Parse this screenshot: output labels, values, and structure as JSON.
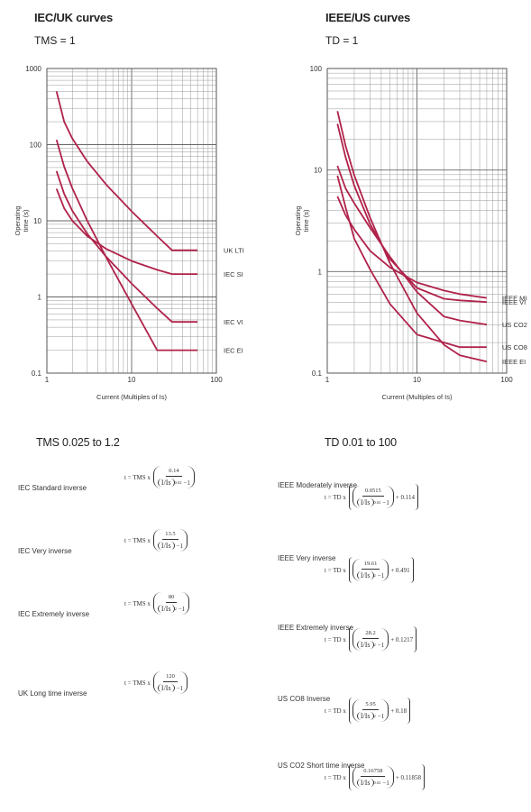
{
  "left": {
    "title": "IEC/UK curves",
    "setting": "TMS = 1",
    "range": "TMS 0.025 to 1.2"
  },
  "right": {
    "title": "IEEE/US curves",
    "setting": "TD = 1",
    "range": "TD 0.01 to 100"
  },
  "chart_data": [
    {
      "type": "line",
      "title": "IEC/UK curves",
      "subtitle": "TMS = 1",
      "xlabel": "Current (Multiples of Is)",
      "ylabel": "Operating time (s)",
      "xscale": "log",
      "yscale": "log",
      "xlim": [
        1,
        100
      ],
      "ylim": [
        0.1,
        1000
      ],
      "xticks": [
        "1",
        "10",
        "100"
      ],
      "yticks": [
        "1000",
        "100",
        "10",
        "1",
        "0.1"
      ],
      "grid": true,
      "series": [
        {
          "name": "UK LTI",
          "x": [
            1.3,
            1.6,
            2,
            3,
            5,
            10,
            20,
            30,
            60
          ],
          "y": [
            500,
            200,
            120,
            60,
            30,
            13.3,
            6.3,
            4.1,
            4.1
          ]
        },
        {
          "name": "IEC SI",
          "x": [
            1.3,
            1.6,
            2,
            3,
            5,
            10,
            20,
            30,
            60
          ],
          "y": [
            26.4,
            14.6,
            10,
            6.3,
            4.28,
            2.97,
            2.27,
            2.0,
            2.0
          ]
        },
        {
          "name": "IEC VI",
          "x": [
            1.3,
            1.6,
            2,
            3,
            5,
            10,
            20,
            30,
            60
          ],
          "y": [
            45,
            22.5,
            13.5,
            6.75,
            3.38,
            1.5,
            0.71,
            0.47,
            0.47
          ]
        },
        {
          "name": "IEC EI",
          "x": [
            1.3,
            1.6,
            2,
            3,
            5,
            10,
            20,
            60
          ],
          "y": [
            116,
            51.3,
            26.7,
            10,
            3.33,
            0.81,
            0.2,
            0.2
          ]
        }
      ]
    },
    {
      "type": "line",
      "title": "IEEE/US curves",
      "subtitle": "TD = 1",
      "xlabel": "Current (Multiples of Is)",
      "ylabel": "Operating time (s)",
      "xscale": "log",
      "yscale": "log",
      "xlim": [
        1,
        100
      ],
      "ylim": [
        0.1,
        100
      ],
      "xticks": [
        "1",
        "10",
        "100"
      ],
      "yticks": [
        "100",
        "10",
        "1",
        "0.1"
      ],
      "grid": true,
      "series": [
        {
          "name": "IEEE MI",
          "x": [
            1.3,
            1.6,
            2,
            3,
            5,
            10,
            20,
            30,
            60
          ],
          "y": [
            5.5,
            3.6,
            2.6,
            1.6,
            1.1,
            0.78,
            0.65,
            0.6,
            0.55
          ]
        },
        {
          "name": "IEEE VI",
          "x": [
            1.3,
            1.6,
            2,
            3,
            5,
            10,
            20,
            30,
            60
          ],
          "y": [
            28.5,
            13.4,
            7.0,
            2.94,
            1.33,
            0.69,
            0.54,
            0.52,
            0.5
          ]
        },
        {
          "name": "US CO8",
          "x": [
            1.3,
            1.6,
            2,
            3,
            5,
            10,
            20,
            30,
            60
          ],
          "y": [
            8.8,
            4.3,
            2.1,
            1.05,
            0.48,
            0.24,
            0.2,
            0.18,
            0.18
          ]
        },
        {
          "name": "US CO2",
          "x": [
            1.3,
            1.6,
            2,
            3,
            5,
            10,
            20,
            30,
            60
          ],
          "y": [
            11.0,
            6.6,
            4.7,
            2.7,
            1.4,
            0.63,
            0.36,
            0.33,
            0.3
          ]
        },
        {
          "name": "IEEE EI",
          "x": [
            1.3,
            1.6,
            2,
            3,
            5,
            10,
            20,
            30,
            60
          ],
          "y": [
            38,
            17.4,
            8.85,
            3.4,
            1.21,
            0.39,
            0.19,
            0.15,
            0.13
          ]
        }
      ]
    }
  ],
  "formulas_left": [
    {
      "name": "IEC Standard inverse",
      "lhs": "t = TMS x",
      "num": "0.14",
      "exp": "0.02",
      "end": ""
    },
    {
      "name": "IEC Very inverse",
      "lhs": "t = TMS x",
      "num": "13.5",
      "exp": "",
      "end": ""
    },
    {
      "name": "IEC Extremely inverse",
      "lhs": "t = TMS x",
      "num": "80",
      "exp": "2",
      "end": ""
    },
    {
      "name": "UK Long time inverse",
      "lhs": "t = TMS x",
      "num": "120",
      "exp": "",
      "end": ""
    }
  ],
  "formulas_right": [
    {
      "name": "IEEE Moderately inverse",
      "lhs": "t = TD x",
      "num": "0.0515",
      "exp": "0.02",
      "end": "+ 0.114"
    },
    {
      "name": "IEEE Very inverse",
      "lhs": "t = TD x",
      "num": "19.61",
      "exp": "2",
      "end": "+ 0.491"
    },
    {
      "name": "IEEE Extremely inverse",
      "lhs": "t = TD x",
      "num": "28.2",
      "exp": "2",
      "end": "+ 0.1217"
    },
    {
      "name": "US CO8 Inverse",
      "lhs": "t = TD x",
      "num": "5.95",
      "exp": "2",
      "end": "+ 0.18"
    },
    {
      "name": "US CO2 Short time inverse",
      "lhs": "t = TD x",
      "num": "0.16758",
      "exp": "0.02",
      "end": "+ 0.11858"
    }
  ],
  "formula_common": {
    "ratio": "I/Is",
    "minus_one": "−1"
  },
  "curve_color": "#b0224a"
}
